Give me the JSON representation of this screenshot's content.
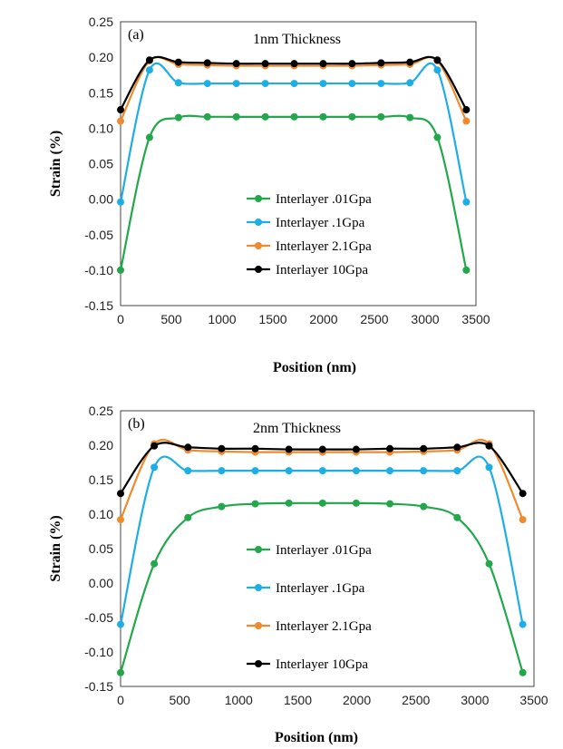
{
  "chart_data": [
    {
      "type": "line",
      "panel_label": "(a)",
      "title": "1nm Thickness",
      "xlabel": "Position (nm)",
      "ylabel": "Strain (%)",
      "xlim": [
        0,
        3500
      ],
      "ylim": [
        -0.15,
        0.25
      ],
      "x_ticks": [
        "0",
        "500",
        "1000",
        "1500",
        "2000",
        "2500",
        "3000",
        "3500"
      ],
      "y_ticks": [
        "0.25",
        "0.20",
        "0.15",
        "0.10",
        "0.05",
        "0.00",
        "-0.05",
        "-0.10",
        "-0.15"
      ],
      "legend_position": "lower-center",
      "x": [
        0,
        285,
        570,
        855,
        1140,
        1425,
        1710,
        1995,
        2280,
        2565,
        2850,
        3120,
        3405
      ],
      "series": [
        {
          "name": "Interlayer .01Gpa",
          "color": "#22a84a",
          "values": [
            -0.1,
            0.087,
            0.115,
            0.116,
            0.116,
            0.116,
            0.116,
            0.116,
            0.116,
            0.116,
            0.115,
            0.087,
            -0.1
          ]
        },
        {
          "name": "Interlayer .1Gpa",
          "color": "#1eaee6",
          "values": [
            -0.004,
            0.182,
            0.164,
            0.163,
            0.163,
            0.163,
            0.163,
            0.163,
            0.163,
            0.163,
            0.164,
            0.182,
            -0.004
          ]
        },
        {
          "name": "Interlayer 2.1Gpa",
          "color": "#f08a2e",
          "values": [
            0.11,
            0.195,
            0.19,
            0.189,
            0.188,
            0.188,
            0.188,
            0.188,
            0.188,
            0.189,
            0.19,
            0.195,
            0.11
          ]
        },
        {
          "name": "Interlayer 10Gpa",
          "color": "#000000",
          "values": [
            0.126,
            0.196,
            0.193,
            0.192,
            0.191,
            0.191,
            0.191,
            0.191,
            0.191,
            0.192,
            0.193,
            0.196,
            0.126
          ]
        }
      ]
    },
    {
      "type": "line",
      "panel_label": "(b)",
      "title": "2nm Thickness",
      "xlabel": "Position (nm)",
      "ylabel": "Strain (%)",
      "xlim": [
        0,
        3500
      ],
      "ylim": [
        -0.15,
        0.25
      ],
      "x_ticks": [
        "0",
        "500",
        "1000",
        "1500",
        "2000",
        "2500",
        "3000",
        "3500"
      ],
      "y_ticks": [
        "0.25",
        "0.20",
        "0.15",
        "0.10",
        "0.05",
        "0.00",
        "-0.05",
        "-0.10",
        "-0.15"
      ],
      "legend_position": "lower-center",
      "x": [
        0,
        285,
        570,
        855,
        1140,
        1425,
        1710,
        1995,
        2280,
        2565,
        2850,
        3120,
        3405
      ],
      "series": [
        {
          "name": "Interlayer .01Gpa",
          "color": "#22a84a",
          "values": [
            -0.13,
            0.028,
            0.095,
            0.111,
            0.115,
            0.116,
            0.116,
            0.116,
            0.115,
            0.111,
            0.095,
            0.028,
            -0.13
          ]
        },
        {
          "name": "Interlayer .1Gpa",
          "color": "#1eaee6",
          "values": [
            -0.06,
            0.168,
            0.163,
            0.163,
            0.163,
            0.163,
            0.163,
            0.163,
            0.163,
            0.163,
            0.163,
            0.168,
            -0.06
          ]
        },
        {
          "name": "Interlayer 2.1Gpa",
          "color": "#f08a2e",
          "values": [
            0.092,
            0.202,
            0.193,
            0.191,
            0.19,
            0.19,
            0.19,
            0.19,
            0.19,
            0.191,
            0.193,
            0.202,
            0.092
          ]
        },
        {
          "name": "Interlayer 10Gpa",
          "color": "#000000",
          "values": [
            0.13,
            0.199,
            0.197,
            0.195,
            0.195,
            0.194,
            0.194,
            0.194,
            0.195,
            0.195,
            0.197,
            0.199,
            0.13
          ]
        }
      ]
    }
  ]
}
